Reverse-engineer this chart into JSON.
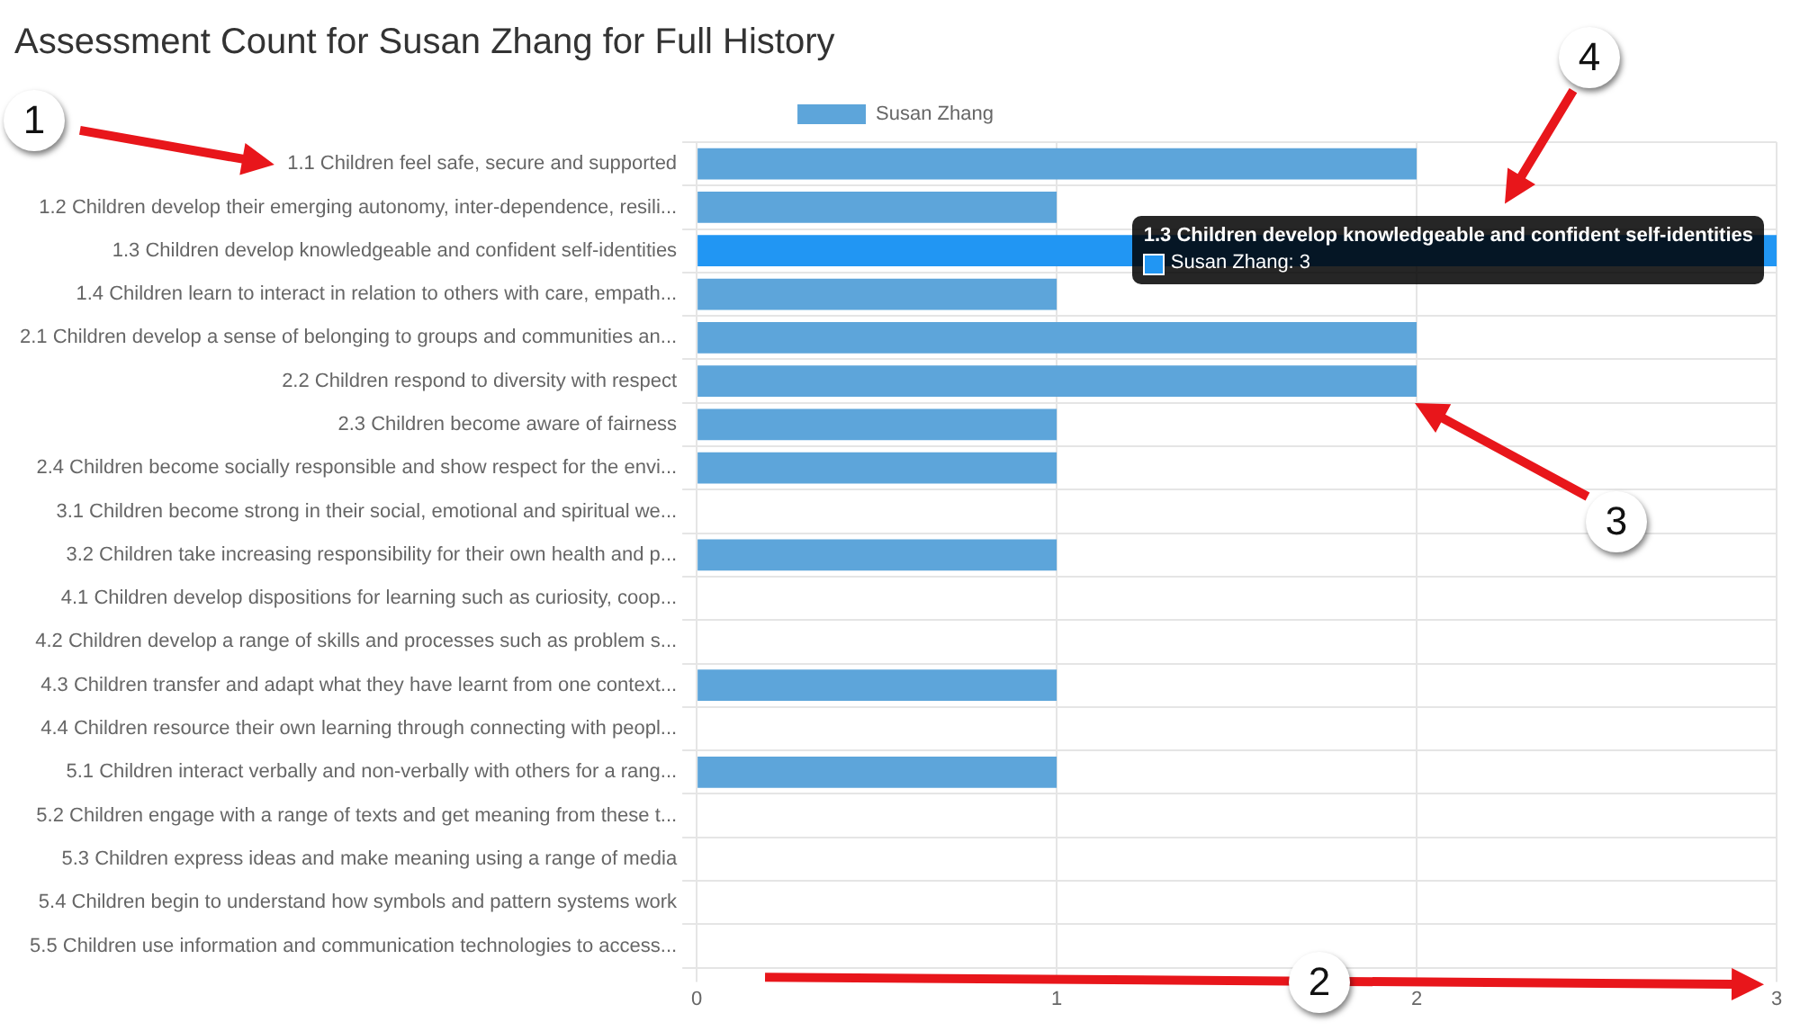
{
  "chart_data": {
    "type": "bar",
    "orientation": "horizontal",
    "title": "Assessment Count for Susan Zhang for Full History",
    "categories": [
      "1.1 Children feel safe, secure and supported",
      "1.2 Children develop their emerging autonomy, inter-dependence, resili...",
      "1.3 Children develop knowledgeable and confident self-identities",
      "1.4 Children learn to interact in relation to others with care, empath...",
      "2.1 Children develop a sense of belonging to groups and communities an...",
      "2.2 Children respond to diversity with respect",
      "2.3 Children become aware of fairness",
      "2.4 Children become socially responsible and show respect for the envi...",
      "3.1 Children become strong in their social, emotional and spiritual we...",
      "3.2 Children take increasing responsibility for their own health and p...",
      "4.1 Children develop dispositions for learning such as curiosity, coop...",
      "4.2 Children develop a range of skills and processes such as problem s...",
      "4.3 Children transfer and adapt what they have learnt from one context...",
      "4.4 Children resource their own learning through connecting with peopl...",
      "5.1 Children interact verbally and non-verbally with others for a rang...",
      "5.2 Children engage with a range of texts and get meaning from these t...",
      "5.3 Children express ideas and make meaning using a range of media",
      "5.4 Children begin to understand how symbols and pattern systems work",
      "5.5 Children use information and communication technologies to access..."
    ],
    "series": [
      {
        "name": "Susan Zhang",
        "color": "#5da5da",
        "colors": [
          "#5da5da",
          "#5da5da",
          "#2196f3",
          "#5da5da",
          "#5da5da",
          "#5da5da",
          "#5da5da",
          "#5da5da",
          "#5da5da",
          "#5da5da",
          "#5da5da",
          "#5da5da",
          "#5da5da",
          "#5da5da",
          "#5da5da",
          "#5da5da",
          "#5da5da",
          "#5da5da",
          "#5da5da"
        ],
        "values": [
          2,
          1,
          3,
          1,
          2,
          2,
          1,
          1,
          0,
          1,
          0,
          0,
          1,
          0,
          1,
          0,
          0,
          0,
          0
        ]
      }
    ],
    "xlim": [
      0,
      3
    ],
    "xticks": [
      0,
      1,
      2,
      3
    ],
    "grid": true,
    "legend": "top",
    "annotations": [
      "1",
      "2",
      "3",
      "4",
      {
        "text": "1.3 Children develop knowledgeable and confident self-identities",
        "x": 3,
        "y": "1.3 Children develop knowledgeable and confident self-identities"
      },
      "Susan Zhang: 3"
    ]
  }
}
